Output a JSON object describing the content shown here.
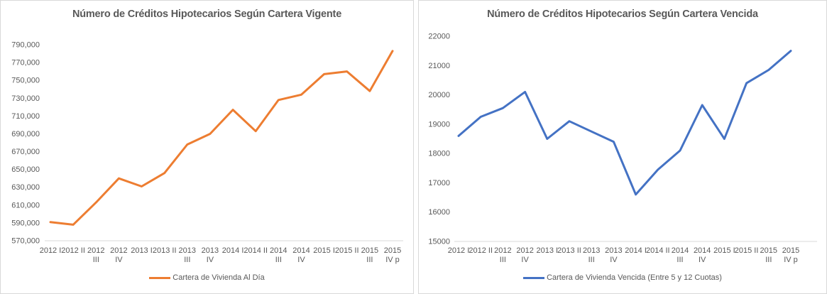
{
  "chart_data": [
    {
      "type": "line",
      "title": "Número de Créditos Hipotecarios Según Cartera Vigente",
      "categories": [
        "2012 I",
        "2012 II",
        "2012 III",
        "2012 IV",
        "2013 I",
        "2013 II",
        "2013 III",
        "2013 IV",
        "2014 I",
        "2014 II",
        "2014 III",
        "2014 IV",
        "2015 I",
        "2015 II",
        "2015 III",
        "2015 IV p"
      ],
      "series": [
        {
          "name": "Cartera de Vivienda Al Día",
          "color": "#ED7D31",
          "values": [
            591000,
            588000,
            613000,
            640000,
            631000,
            646000,
            678000,
            690000,
            717000,
            693000,
            728000,
            734000,
            757000,
            760000,
            738000,
            783000
          ]
        }
      ],
      "ylim": [
        570000,
        790000
      ],
      "y_step": 20000,
      "y_ticks": [
        "790,000",
        "770,000",
        "750,000",
        "730,000",
        "710,000",
        "690,000",
        "670,000",
        "650,000",
        "630,000",
        "610,000",
        "590,000",
        "570,000"
      ],
      "grid": false,
      "legend_position": "bottom",
      "axis_color": "#D9D9D9",
      "text_color": "#595959"
    },
    {
      "type": "line",
      "title": "Número de Créditos Hipotecarios Según Cartera Vencida",
      "categories": [
        "2012 I",
        "2012 II",
        "2012 III",
        "2012 IV",
        "2013 I",
        "2013 II",
        "2013 III",
        "2013 IV",
        "2014 I",
        "2014 II",
        "2014 III",
        "2014 IV",
        "2015 I",
        "2015 II",
        "2015 III",
        "2015 IV p"
      ],
      "series": [
        {
          "name": "Cartera de Vivienda Vencida (Entre 5 y 12 Cuotas)",
          "color": "#4472C4",
          "values": [
            18600,
            19250,
            19550,
            20100,
            18500,
            19100,
            18750,
            18400,
            16600,
            17450,
            18100,
            19650,
            18500,
            20400,
            20850,
            21500
          ]
        }
      ],
      "ylim": [
        15000,
        22000
      ],
      "y_step": 1000,
      "y_ticks": [
        "22000",
        "21000",
        "20000",
        "19000",
        "18000",
        "17000",
        "16000",
        "15000"
      ],
      "grid": false,
      "legend_position": "bottom",
      "axis_color": "#D9D9D9",
      "text_color": "#595959"
    }
  ]
}
